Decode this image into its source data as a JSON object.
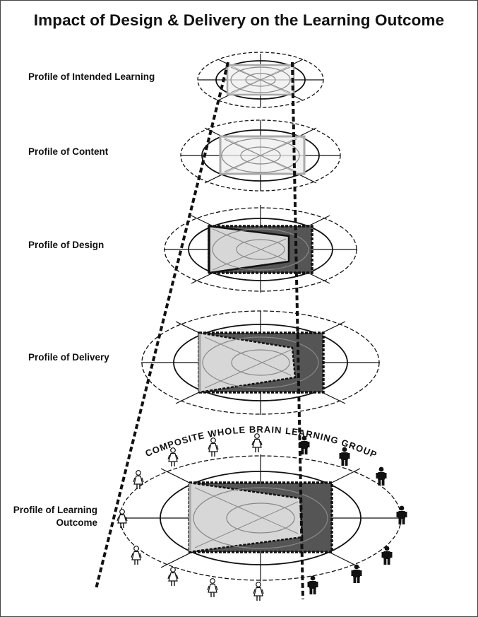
{
  "title": "Impact of Design & Delivery on the Learning Outcome",
  "profiles": [
    {
      "label": "Profile of Intended Learning"
    },
    {
      "label": "Profile of Content"
    },
    {
      "label": "Profile of Design"
    },
    {
      "label": "Profile of Delivery"
    },
    {
      "label_line1": "Profile of Learning",
      "label_line2": "Outcome"
    }
  ],
  "group_label": "COMPOSITE WHOLE BRAIN LEARNING GROUP",
  "people": {
    "female_count": 9,
    "male_count": 8,
    "female_color": "#ffffff",
    "male_color": "#111111"
  },
  "colors": {
    "fill_light": "#eeeeee",
    "fill_dark": "#555555",
    "frame": "#444444",
    "grid_line": "#888888"
  }
}
